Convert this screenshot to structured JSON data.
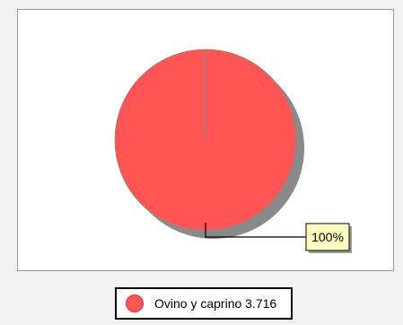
{
  "chart_data": {
    "type": "pie",
    "categories": [
      "Ovino y caprino"
    ],
    "values": [
      3.716
    ],
    "percent_labels": [
      "100%"
    ],
    "legend": [
      {
        "label": "Ovino y caprino 3.716",
        "color": "#ff5555"
      }
    ],
    "legend_position": "bottom",
    "colors": {
      "slice": "#ff5555",
      "shadow": "#8a8a8a",
      "callout_bg": "#ffffc0"
    }
  }
}
